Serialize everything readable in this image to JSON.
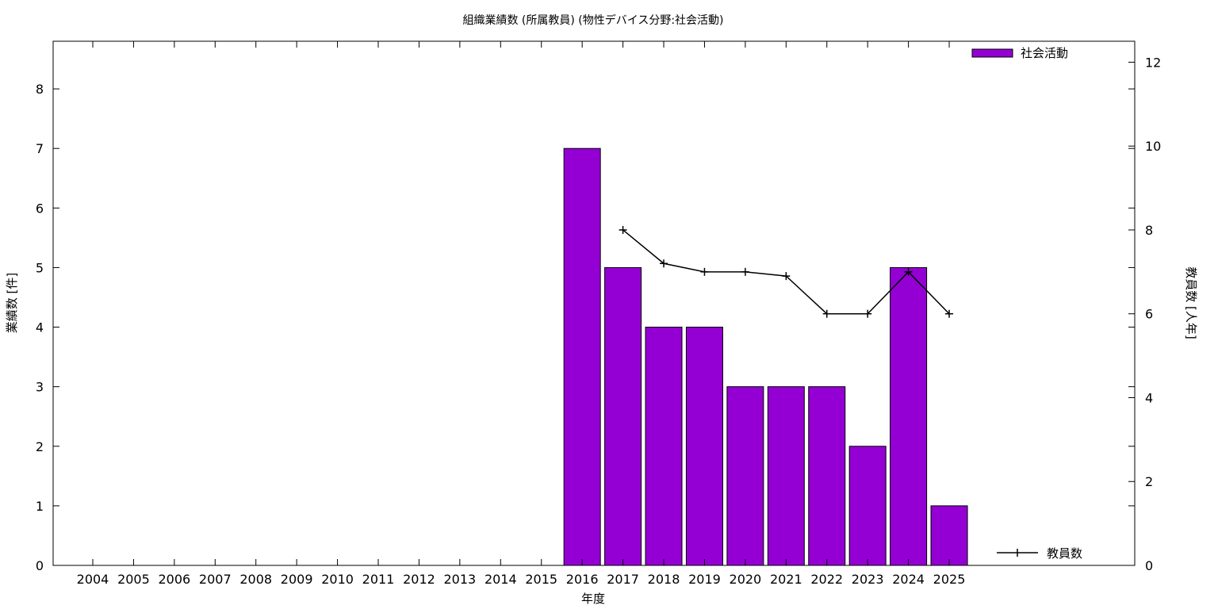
{
  "chart_data": {
    "type": "bar",
    "title": "組織業績数 (所属教員) (物性デバイス分野:社会活動)",
    "xlabel": "年度",
    "ylabel": "業績数 [件]",
    "y2label": "教員数 [人年]",
    "categories": [
      "2004",
      "2005",
      "2006",
      "2007",
      "2008",
      "2009",
      "2010",
      "2011",
      "2012",
      "2013",
      "2014",
      "2015",
      "2016",
      "2017",
      "2018",
      "2019",
      "2020",
      "2021",
      "2022",
      "2023",
      "2024",
      "2025"
    ],
    "series": [
      {
        "name": "社会活動",
        "type": "bar",
        "axis": "left",
        "color": "#9400d3",
        "values": [
          0,
          0,
          0,
          0,
          0,
          0,
          0,
          0,
          0,
          0,
          0,
          0,
          7,
          5,
          4,
          4,
          3,
          3,
          3,
          2,
          5,
          1
        ]
      },
      {
        "name": "教員数",
        "type": "line",
        "axis": "right",
        "color": "#000000",
        "marker": "plus",
        "values": [
          null,
          null,
          null,
          null,
          null,
          null,
          null,
          null,
          null,
          null,
          null,
          null,
          null,
          8,
          7.2,
          7,
          7,
          6.9,
          6,
          6,
          7,
          6
        ]
      }
    ],
    "ylim": [
      0,
      8.8
    ],
    "yticks": [
      0,
      1,
      2,
      3,
      4,
      5,
      6,
      7,
      8
    ],
    "y2lim": [
      0,
      12.5
    ],
    "y2ticks": [
      0,
      2,
      4,
      6,
      8,
      10,
      12
    ],
    "legend_position": "top-right"
  }
}
